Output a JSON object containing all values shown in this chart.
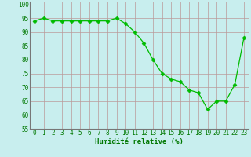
{
  "x": [
    0,
    1,
    2,
    3,
    4,
    5,
    6,
    7,
    8,
    9,
    10,
    11,
    12,
    13,
    14,
    15,
    16,
    17,
    18,
    19,
    20,
    21,
    22,
    23
  ],
  "y": [
    94,
    95,
    94,
    94,
    94,
    94,
    94,
    94,
    94,
    95,
    93,
    90,
    86,
    80,
    75,
    73,
    72,
    69,
    68,
    62,
    65,
    65,
    71,
    88
  ],
  "line_color": "#00bb00",
  "marker": "D",
  "marker_size": 2.5,
  "bg_color": "#c8eeee",
  "grid_color": "#bb9999",
  "xlabel": "Humidité relative (%)",
  "xlabel_color": "#007700",
  "tick_color": "#007700",
  "axis_color": "#777777",
  "ylim": [
    55,
    101
  ],
  "xlim": [
    -0.5,
    23.5
  ],
  "yticks": [
    55,
    60,
    65,
    70,
    75,
    80,
    85,
    90,
    95,
    100
  ],
  "xticks": [
    0,
    1,
    2,
    3,
    4,
    5,
    6,
    7,
    8,
    9,
    10,
    11,
    12,
    13,
    14,
    15,
    16,
    17,
    18,
    19,
    20,
    21,
    22,
    23
  ],
  "tick_fontsize": 5.5,
  "xlabel_fontsize": 6.5
}
